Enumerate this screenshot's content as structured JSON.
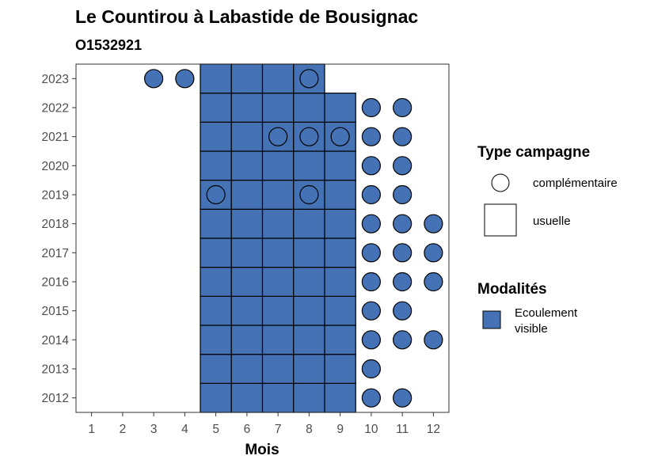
{
  "chart_data": {
    "type": "heatmap",
    "title": "Le Countirou à Labastide de Bousignac",
    "subtitle": "O1532921",
    "xlabel": "Mois",
    "ylabel": "",
    "x_ticks": [
      "1",
      "2",
      "3",
      "4",
      "5",
      "6",
      "7",
      "8",
      "9",
      "10",
      "11",
      "12"
    ],
    "y_ticks": [
      "2012",
      "2013",
      "2014",
      "2015",
      "2016",
      "2017",
      "2018",
      "2019",
      "2020",
      "2021",
      "2022",
      "2023"
    ],
    "xlim": [
      0.5,
      12.5
    ],
    "ylim": [
      2011.5,
      2023.5
    ],
    "fill_color": "#4472b4",
    "legend": {
      "shape_title": "Type campagne",
      "shape_items": [
        {
          "label": "complémentaire",
          "shape": "circle"
        },
        {
          "label": "usuelle",
          "shape": "square"
        }
      ],
      "fill_title": "Modalités",
      "fill_items": [
        {
          "label_lines": [
            "Ecoulement",
            "visible"
          ],
          "color": "#4472b4"
        }
      ]
    },
    "usuelle": {
      "2023": [
        5,
        6,
        7,
        8
      ],
      "2022": [
        5,
        6,
        7,
        8,
        9
      ],
      "2021": [
        5,
        6,
        7,
        8,
        9
      ],
      "2020": [
        5,
        6,
        7,
        8,
        9
      ],
      "2019": [
        5,
        6,
        7,
        8,
        9
      ],
      "2018": [
        5,
        6,
        7,
        8,
        9
      ],
      "2017": [
        5,
        6,
        7,
        8,
        9
      ],
      "2016": [
        5,
        6,
        7,
        8,
        9
      ],
      "2015": [
        5,
        6,
        7,
        8,
        9
      ],
      "2014": [
        5,
        6,
        7,
        8,
        9
      ],
      "2013": [
        5,
        6,
        7,
        8,
        9
      ],
      "2012": [
        5,
        6,
        7,
        8,
        9
      ]
    },
    "complementaire": {
      "2023": [
        3,
        4,
        8
      ],
      "2022": [
        10,
        11
      ],
      "2021": [
        7,
        8,
        9,
        10,
        11
      ],
      "2020": [
        10,
        11
      ],
      "2019": [
        5,
        8,
        10,
        11
      ],
      "2018": [
        10,
        11,
        12
      ],
      "2017": [
        10,
        11,
        12
      ],
      "2016": [
        10,
        11,
        12
      ],
      "2015": [
        10,
        11
      ],
      "2014": [
        10,
        11,
        12
      ],
      "2013": [
        10
      ],
      "2012": [
        10,
        11
      ]
    }
  }
}
